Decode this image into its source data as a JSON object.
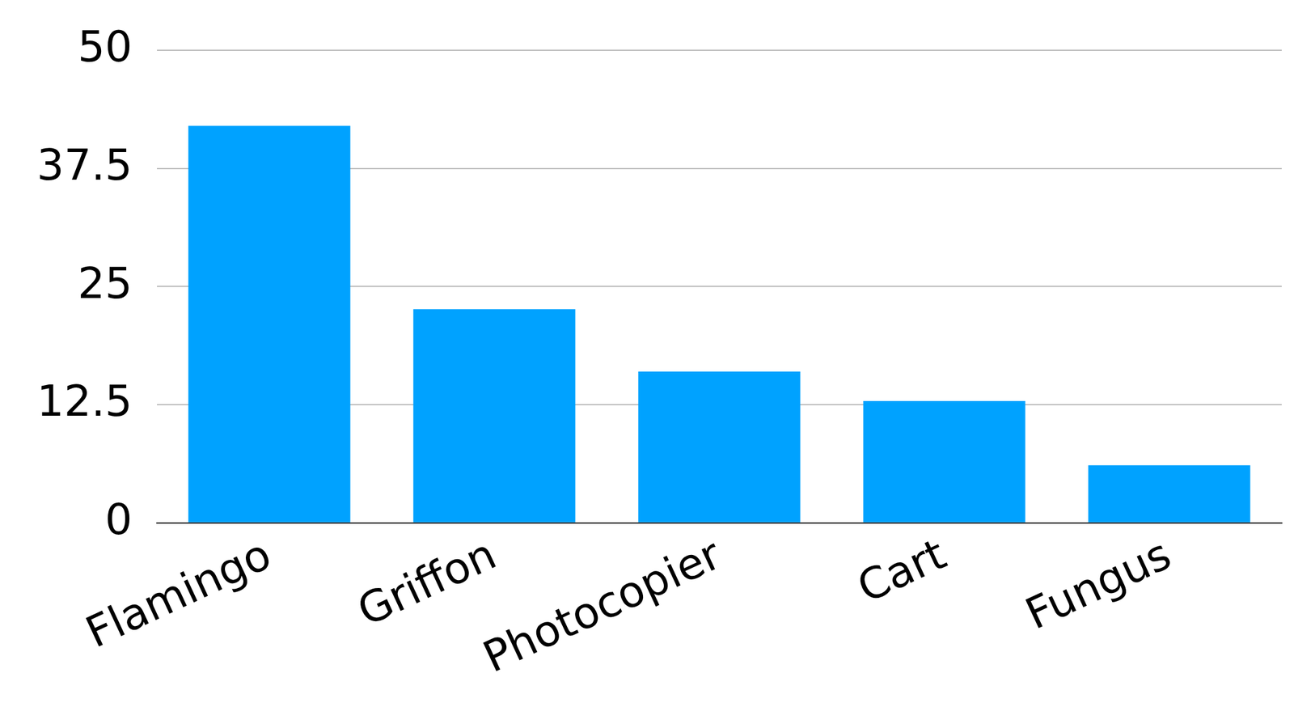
{
  "chart_data": {
    "type": "bar",
    "categories": [
      "Flamingo",
      "Griffon",
      "Photocopier",
      "Cart",
      "Fungus"
    ],
    "values": [
      42.0,
      22.6,
      16.0,
      12.9,
      6.1
    ],
    "color": "#00a2ff",
    "ylim": [
      0,
      50
    ],
    "yticks": [
      0,
      12.5,
      25,
      37.5,
      50
    ],
    "grid": true
  }
}
